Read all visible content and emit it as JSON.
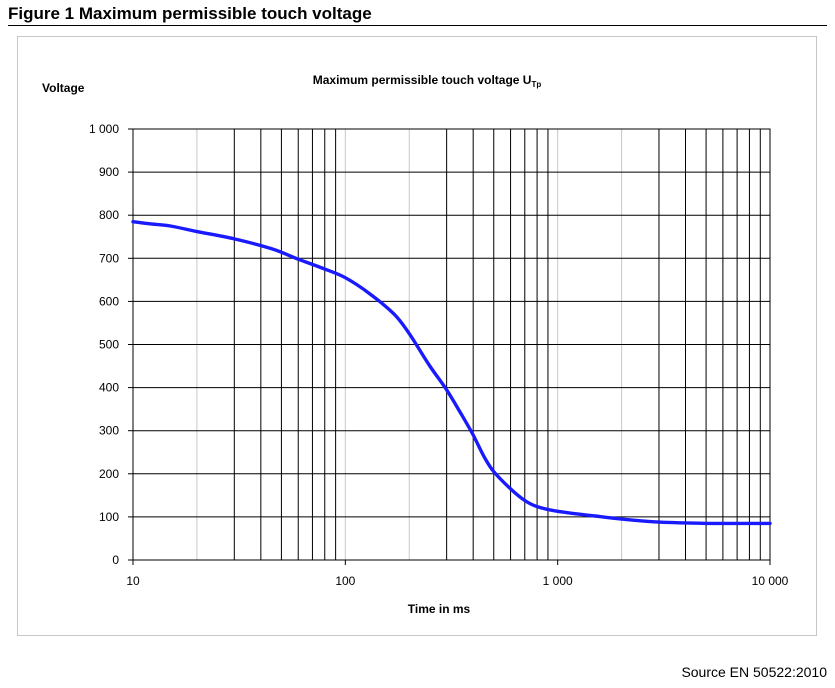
{
  "figure": {
    "title": "Figure 1 Maximum permissible touch voltage",
    "source": "Source EN 50522:2010"
  },
  "chart_data": {
    "type": "line",
    "title": "Maximum permissible  touch voltage U",
    "title_subscript": "Tp",
    "xlabel": "Time in ms",
    "ylabel": "Voltage",
    "x_scale": "log",
    "xlim": [
      10,
      10000
    ],
    "ylim": [
      0,
      1000
    ],
    "x_tick_labels": [
      "10",
      "100",
      "1 000",
      "10 000"
    ],
    "y_tick_labels": [
      "0",
      "100",
      "200",
      "300",
      "400",
      "500",
      "600",
      "700",
      "800",
      "900",
      "1 000"
    ],
    "grid": true,
    "line_color": "#1a1aff",
    "series": [
      {
        "x": [
          10,
          12,
          15,
          20,
          30,
          45,
          60,
          80,
          100,
          130,
          170,
          200,
          250,
          300,
          350,
          400,
          450,
          500,
          600,
          700,
          800,
          1000,
          1500,
          2000,
          3000,
          5000,
          10000
        ],
        "values": [
          785,
          780,
          775,
          762,
          745,
          722,
          698,
          675,
          655,
          618,
          570,
          525,
          450,
          395,
          340,
          290,
          240,
          205,
          165,
          138,
          124,
          113,
          102,
          95,
          88,
          85,
          85
        ]
      }
    ]
  }
}
